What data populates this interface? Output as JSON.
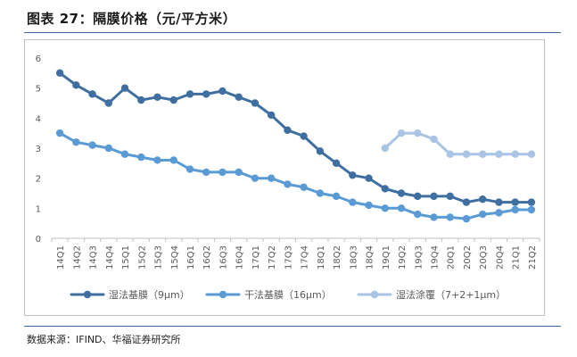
{
  "header": {
    "title": "图表 27：隔膜价格（元/平方米）"
  },
  "footer": {
    "source": "数据来源：IFIND、华福证券研究所"
  },
  "chart_data": {
    "type": "line",
    "title": "",
    "xlabel": "",
    "ylabel": "",
    "ylim": [
      0,
      6
    ],
    "yticks": [
      0,
      1,
      2,
      3,
      4,
      5,
      6
    ],
    "grid": false,
    "legend_position": "bottom",
    "categories": [
      "14Q1",
      "14Q2",
      "14Q3",
      "14Q4",
      "15Q1",
      "15Q2",
      "15Q3",
      "15Q4",
      "16Q1",
      "16Q2",
      "16Q3",
      "16Q4",
      "17Q1",
      "17Q2",
      "17Q3",
      "17Q4",
      "18Q1",
      "18Q2",
      "18Q3",
      "18Q4",
      "19Q1",
      "19Q2",
      "19Q3",
      "19Q4",
      "20Q1",
      "20Q2",
      "20Q3",
      "20Q4",
      "21Q1",
      "21Q2"
    ],
    "series": [
      {
        "name": "湿法基膜（9μm）",
        "color": "#3f6fa0",
        "values": [
          5.5,
          5.1,
          4.8,
          4.5,
          5.0,
          4.6,
          4.7,
          4.6,
          4.8,
          4.8,
          4.9,
          4.7,
          4.5,
          4.1,
          3.6,
          3.4,
          2.9,
          2.5,
          2.1,
          2.0,
          1.65,
          1.5,
          1.4,
          1.4,
          1.4,
          1.2,
          1.3,
          1.2,
          1.2,
          1.2
        ]
      },
      {
        "name": "干法基膜（16μm）",
        "color": "#5b9bd5",
        "values": [
          3.5,
          3.2,
          3.1,
          3.0,
          2.8,
          2.7,
          2.6,
          2.6,
          2.3,
          2.2,
          2.2,
          2.2,
          2.0,
          2.0,
          1.8,
          1.7,
          1.5,
          1.4,
          1.2,
          1.1,
          1.0,
          1.0,
          0.8,
          0.7,
          0.7,
          0.65,
          0.8,
          0.85,
          0.95,
          0.95
        ]
      },
      {
        "name": "湿法涂覆（7+2+1μm）",
        "color": "#a9c4e4",
        "values": [
          null,
          null,
          null,
          null,
          null,
          null,
          null,
          null,
          null,
          null,
          null,
          null,
          null,
          null,
          null,
          null,
          null,
          null,
          null,
          null,
          3.0,
          3.5,
          3.5,
          3.3,
          2.8,
          2.8,
          2.8,
          2.8,
          2.8,
          2.8
        ]
      }
    ]
  }
}
